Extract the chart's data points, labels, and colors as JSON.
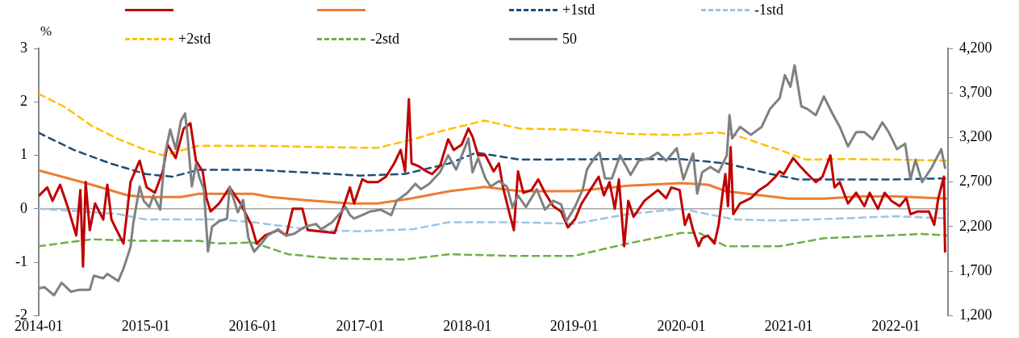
{
  "chart_data": {
    "type": "line",
    "ylabel": "%",
    "legend": "top",
    "grid": false,
    "marker": "none",
    "xlim": [
      "2014-01-01",
      "2022-06-28"
    ],
    "xticks": [
      "2014-01",
      "2015-01",
      "2016-01",
      "2017-01",
      "2018-01",
      "2019-01",
      "2020-01",
      "2021-01",
      "2022-01"
    ],
    "ylim": [
      -2,
      3
    ],
    "yticks": [
      -2,
      -1,
      0,
      1,
      2,
      3
    ],
    "y2lim": [
      1200,
      4200
    ],
    "y2ticks": [
      {
        "value": 1200,
        "label": "1,200"
      },
      {
        "value": 1700,
        "label": "1,700"
      },
      {
        "value": 2200,
        "label": "2,200"
      },
      {
        "value": 2700,
        "label": "2,700"
      },
      {
        "value": 3200,
        "label": "3,200"
      },
      {
        "value": 3700,
        "label": "3,700"
      },
      {
        "value": 4200,
        "label": "4,200"
      }
    ],
    "ref_lines": [
      {
        "axis": "y",
        "value": 0,
        "color": "#a6a6a6"
      }
    ],
    "series": [
      {
        "color": "#c00000",
        "line_style": "solid",
        "x": [
          "2014-01-03",
          "2014-01-30",
          "2014-02-17",
          "2014-03-15",
          "2014-04-12",
          "2014-05-09",
          "2014-05-23",
          "2014-06-01",
          "2014-06-10",
          "2014-06-24",
          "2014-07-12",
          "2014-08-09",
          "2014-08-23",
          "2014-09-06",
          "2014-10-03",
          "2014-10-17",
          "2014-11-10",
          "2014-12-11",
          "2015-01-04",
          "2015-02-01",
          "2015-02-28",
          "2015-03-16",
          "2015-04-13",
          "2015-05-10",
          "2015-06-02",
          "2015-06-21",
          "2015-07-14",
          "2015-07-27",
          "2015-08-10",
          "2015-09-08",
          "2015-10-14",
          "2015-11-20",
          "2015-12-27",
          "2016-01-14",
          "2016-02-11",
          "2016-03-27",
          "2016-04-24",
          "2016-05-16",
          "2016-06-18",
          "2016-07-06",
          "2016-10-06",
          "2016-11-12",
          "2016-11-27",
          "2016-12-11",
          "2017-01-08",
          "2017-01-26",
          "2017-03-02",
          "2017-03-30",
          "2017-04-27",
          "2017-05-19",
          "2017-06-03",
          "2017-06-16",
          "2017-06-25",
          "2017-07-18",
          "2017-08-15",
          "2017-09-03",
          "2017-09-30",
          "2017-10-28",
          "2017-11-16",
          "2017-12-13",
          "2018-01-05",
          "2018-01-19",
          "2018-02-07",
          "2018-03-04",
          "2018-04-01",
          "2018-04-19",
          "2018-05-03",
          "2018-05-21",
          "2018-06-09",
          "2018-06-23",
          "2018-07-11",
          "2018-08-08",
          "2018-08-31",
          "2018-09-23",
          "2018-10-21",
          "2018-11-17",
          "2018-12-10",
          "2019-01-03",
          "2019-01-26",
          "2019-02-18",
          "2019-03-25",
          "2019-04-12",
          "2019-05-01",
          "2019-05-19",
          "2019-06-02",
          "2019-06-20",
          "2019-07-04",
          "2019-07-22",
          "2019-08-28",
          "2019-10-13",
          "2019-11-10",
          "2019-11-28",
          "2019-12-26",
          "2020-01-13",
          "2020-01-27",
          "2020-02-10",
          "2020-02-29",
          "2020-03-12",
          "2020-03-31",
          "2020-04-23",
          "2020-05-07",
          "2020-05-21",
          "2020-05-30",
          "2020-06-08",
          "2020-06-17",
          "2020-06-26",
          "2020-07-19",
          "2020-08-25",
          "2020-09-22",
          "2020-10-20",
          "2020-11-17",
          "2020-12-01",
          "2020-12-15",
          "2021-01-16",
          "2021-02-08",
          "2021-03-06",
          "2021-04-03",
          "2021-04-26",
          "2021-05-23",
          "2021-06-06",
          "2021-06-24",
          "2021-07-22",
          "2021-08-19",
          "2021-09-16",
          "2021-10-04",
          "2021-11-01",
          "2021-11-24",
          "2021-12-17",
          "2022-01-14",
          "2022-02-06",
          "2022-02-20",
          "2022-03-17",
          "2022-04-24",
          "2022-05-12",
          "2022-05-26",
          "2022-06-14",
          "2022-06-18"
        ],
        "values": [
          0.25,
          0.4,
          0.15,
          0.45,
          0.0,
          -0.5,
          0.35,
          -1.08,
          0.5,
          -0.4,
          0.1,
          -0.2,
          0.45,
          -0.2,
          -0.5,
          -0.65,
          0.5,
          0.9,
          0.4,
          0.3,
          0.7,
          1.2,
          0.95,
          1.5,
          1.6,
          0.9,
          0.7,
          0.2,
          -0.05,
          0.1,
          0.4,
          0.1,
          -0.3,
          -0.65,
          -0.5,
          -0.4,
          -0.5,
          0.0,
          0.0,
          -0.4,
          -0.45,
          0.15,
          0.4,
          0.1,
          0.55,
          0.5,
          0.5,
          0.6,
          0.85,
          1.1,
          0.7,
          2.05,
          0.85,
          0.8,
          0.7,
          0.65,
          0.8,
          1.3,
          1.1,
          1.2,
          1.5,
          1.35,
          1.0,
          1.0,
          0.7,
          0.85,
          0.4,
          0.0,
          -0.4,
          0.7,
          0.3,
          0.35,
          0.55,
          0.3,
          0.05,
          -0.05,
          -0.35,
          -0.2,
          0.1,
          0.3,
          0.6,
          0.25,
          0.5,
          0.0,
          0.55,
          -0.7,
          0.15,
          -0.15,
          0.15,
          0.35,
          0.2,
          0.4,
          0.35,
          -0.3,
          -0.1,
          -0.4,
          -0.7,
          -0.55,
          -0.5,
          -0.65,
          -0.3,
          0.3,
          0.65,
          0.05,
          1.15,
          -0.1,
          0.1,
          0.2,
          0.35,
          0.45,
          0.6,
          0.7,
          0.65,
          0.95,
          0.8,
          0.65,
          0.5,
          0.6,
          1.0,
          0.4,
          0.5,
          0.1,
          0.3,
          0.05,
          0.3,
          0.0,
          0.3,
          0.15,
          0.05,
          0.2,
          -0.1,
          -0.05,
          -0.05,
          -0.3,
          0.2,
          0.6,
          -0.8
        ]
      },
      {
        "color": "#ed7d31",
        "line_style": "solid",
        "x": [
          "2014-01-01",
          "2014-07-01",
          "2014-11-01",
          "2015-01-01",
          "2015-05-01",
          "2015-07-01",
          "2016-01-01",
          "2016-03-01",
          "2016-07-01",
          "2016-12-01",
          "2017-03-01",
          "2017-07-01",
          "2017-11-01",
          "2018-03-01",
          "2018-07-01",
          "2019-01-01",
          "2019-07-01",
          "2020-01-01",
          "2020-04-01",
          "2020-06-01",
          "2020-10-01",
          "2021-01-01",
          "2021-05-01",
          "2021-09-01",
          "2022-01-01",
          "2022-06-28"
        ],
        "values": [
          0.72,
          0.45,
          0.25,
          0.22,
          0.22,
          0.28,
          0.28,
          0.22,
          0.16,
          0.1,
          0.1,
          0.2,
          0.33,
          0.41,
          0.33,
          0.33,
          0.43,
          0.48,
          0.45,
          0.33,
          0.25,
          0.19,
          0.19,
          0.23,
          0.23,
          0.19
        ]
      },
      {
        "name": "+1std",
        "color": "#1f4e79",
        "line_style": "dashed",
        "x": [
          "2014-01-01",
          "2014-05-01",
          "2014-09-01",
          "2015-01-01",
          "2015-04-01",
          "2015-07-01",
          "2016-01-01",
          "2016-07-01",
          "2017-01-01",
          "2017-06-01",
          "2017-11-01",
          "2018-02-01",
          "2018-07-01",
          "2019-07-01",
          "2020-01-01",
          "2020-06-01",
          "2020-11-01",
          "2021-02-01",
          "2021-09-01",
          "2022-01-01",
          "2022-06-28"
        ],
        "values": [
          1.42,
          1.1,
          0.85,
          0.65,
          0.6,
          0.73,
          0.73,
          0.68,
          0.62,
          0.65,
          0.85,
          1.05,
          0.92,
          0.93,
          0.93,
          0.85,
          0.65,
          0.55,
          0.55,
          0.55,
          0.57
        ]
      },
      {
        "name": "-1std",
        "color": "#9dc3e6",
        "line_style": "dashed",
        "x": [
          "2014-01-01",
          "2014-06-01",
          "2014-10-01",
          "2015-01-01",
          "2015-09-01",
          "2016-01-01",
          "2016-08-01",
          "2017-01-01",
          "2017-07-01",
          "2017-11-01",
          "2018-06-01",
          "2019-01-01",
          "2019-07-01",
          "2020-01-01",
          "2020-04-01",
          "2020-07-01",
          "2020-12-01",
          "2021-07-01",
          "2022-01-01",
          "2022-06-28"
        ],
        "values": [
          0.0,
          -0.05,
          -0.1,
          -0.2,
          -0.2,
          -0.25,
          -0.4,
          -0.42,
          -0.38,
          -0.25,
          -0.25,
          -0.28,
          -0.1,
          0.0,
          -0.1,
          -0.2,
          -0.22,
          -0.18,
          -0.14,
          -0.18
        ]
      },
      {
        "name": "+2std",
        "color": "#ffc000",
        "line_style": "dashed",
        "x": [
          "2014-01-01",
          "2014-04-01",
          "2014-07-01",
          "2014-10-01",
          "2015-01-01",
          "2015-03-01",
          "2015-07-01",
          "2016-01-01",
          "2016-10-01",
          "2017-03-01",
          "2017-07-01",
          "2017-10-01",
          "2018-03-01",
          "2018-07-01",
          "2019-01-01",
          "2019-07-01",
          "2020-01-01",
          "2020-05-01",
          "2020-07-01",
          "2020-12-01",
          "2021-03-01",
          "2021-07-01",
          "2022-01-01",
          "2022-06-28"
        ],
        "values": [
          2.15,
          1.9,
          1.55,
          1.3,
          1.1,
          1.0,
          1.18,
          1.18,
          1.15,
          1.14,
          1.3,
          1.45,
          1.65,
          1.5,
          1.48,
          1.4,
          1.38,
          1.43,
          1.38,
          1.1,
          0.92,
          0.93,
          0.92,
          0.9
        ]
      },
      {
        "name": "-2std",
        "color": "#70ad47",
        "line_style": "dashed",
        "x": [
          "2014-01-01",
          "2014-07-01",
          "2015-01-01",
          "2015-07-01",
          "2015-09-01",
          "2016-01-01",
          "2016-05-01",
          "2016-10-01",
          "2017-06-01",
          "2017-11-01",
          "2018-06-01",
          "2019-01-01",
          "2019-07-01",
          "2020-01-01",
          "2020-03-01",
          "2020-06-01",
          "2020-12-01",
          "2021-05-01",
          "2021-12-01",
          "2022-04-01",
          "2022-06-28"
        ],
        "values": [
          -0.7,
          -0.57,
          -0.6,
          -0.6,
          -0.65,
          -0.63,
          -0.85,
          -0.93,
          -0.95,
          -0.85,
          -0.88,
          -0.88,
          -0.65,
          -0.45,
          -0.45,
          -0.7,
          -0.7,
          -0.55,
          -0.5,
          -0.47,
          -0.5
        ]
      },
      {
        "name": "50",
        "color": "#808080",
        "line_style": "solid",
        "axis": "y2",
        "x": [
          "2014-01-03",
          "2014-01-21",
          "2014-02-22",
          "2014-03-20",
          "2014-04-21",
          "2014-05-18",
          "2014-06-24",
          "2014-07-08",
          "2014-08-09",
          "2014-08-23",
          "2014-09-15",
          "2014-09-29",
          "2014-10-17",
          "2014-11-10",
          "2014-11-19",
          "2014-12-11",
          "2014-12-25",
          "2015-01-13",
          "2015-01-27",
          "2015-02-19",
          "2015-03-07",
          "2015-03-25",
          "2015-04-13",
          "2015-05-01",
          "2015-05-15",
          "2015-05-24",
          "2015-06-07",
          "2015-06-21",
          "2015-07-04",
          "2015-07-18",
          "2015-08-01",
          "2015-08-15",
          "2015-09-08",
          "2015-10-05",
          "2015-10-14",
          "2015-11-11",
          "2015-11-29",
          "2015-12-17",
          "2016-01-05",
          "2016-01-28",
          "2016-02-20",
          "2016-03-27",
          "2016-04-24",
          "2016-05-21",
          "2016-06-27",
          "2016-08-03",
          "2016-08-21",
          "2016-09-27",
          "2016-11-12",
          "2016-11-27",
          "2016-12-11",
          "2017-01-08",
          "2017-02-04",
          "2017-03-11",
          "2017-04-17",
          "2017-05-05",
          "2017-06-11",
          "2017-07-08",
          "2017-07-27",
          "2017-08-24",
          "2017-09-30",
          "2017-10-28",
          "2017-11-24",
          "2017-12-22",
          "2018-01-05",
          "2018-01-19",
          "2018-02-07",
          "2018-03-04",
          "2018-03-22",
          "2018-04-19",
          "2018-05-16",
          "2018-06-04",
          "2018-06-23",
          "2018-07-20",
          "2018-08-26",
          "2018-09-23",
          "2018-10-21",
          "2018-11-17",
          "2018-12-05",
          "2019-01-03",
          "2019-01-30",
          "2019-02-13",
          "2019-03-10",
          "2019-03-28",
          "2019-04-16",
          "2019-05-09",
          "2019-06-06",
          "2019-07-12",
          "2019-08-09",
          "2019-09-15",
          "2019-10-13",
          "2019-11-10",
          "2019-12-16",
          "2020-01-08",
          "2020-01-20",
          "2020-02-10",
          "2020-02-24",
          "2020-03-12",
          "2020-04-09",
          "2020-05-07",
          "2020-06-04",
          "2020-06-13",
          "2020-06-22",
          "2020-07-19",
          "2020-08-25",
          "2020-10-01",
          "2020-10-29",
          "2020-12-01",
          "2020-12-19",
          "2021-01-07",
          "2021-01-21",
          "2021-02-13",
          "2021-03-06",
          "2021-04-03",
          "2021-05-01",
          "2021-05-28",
          "2021-06-24",
          "2021-07-22",
          "2021-08-19",
          "2021-09-16",
          "2021-10-14",
          "2021-11-16",
          "2021-12-08",
          "2022-01-05",
          "2022-02-02",
          "2022-02-20",
          "2022-03-09",
          "2022-04-01",
          "2022-05-03",
          "2022-06-05",
          "2022-06-18"
        ],
        "values": [
          1510,
          1520,
          1430,
          1570,
          1470,
          1490,
          1490,
          1650,
          1620,
          1670,
          1620,
          1590,
          1730,
          1970,
          2230,
          2650,
          2490,
          2420,
          2550,
          2390,
          3000,
          3290,
          3070,
          3390,
          3470,
          3190,
          2650,
          2900,
          2740,
          2620,
          1920,
          2200,
          2260,
          2290,
          2650,
          2360,
          2500,
          2070,
          1920,
          2000,
          2100,
          2170,
          2100,
          2120,
          2200,
          2230,
          2170,
          2250,
          2420,
          2330,
          2290,
          2330,
          2370,
          2390,
          2330,
          2490,
          2580,
          2680,
          2620,
          2680,
          2810,
          3000,
          2840,
          3070,
          3190,
          2810,
          2970,
          2740,
          2650,
          2710,
          2650,
          2420,
          2550,
          2420,
          2620,
          2390,
          2490,
          2450,
          2260,
          2420,
          2620,
          2840,
          2970,
          3030,
          2740,
          2740,
          3000,
          2780,
          2940,
          2970,
          3030,
          2940,
          3080,
          2730,
          2840,
          3020,
          2570,
          2810,
          2870,
          2810,
          3000,
          3450,
          3190,
          3320,
          3230,
          3320,
          3520,
          3640,
          3900,
          3770,
          4010,
          3550,
          3520,
          3450,
          3660,
          3480,
          3320,
          3100,
          3260,
          3260,
          3180,
          3370,
          3260,
          3070,
          3130,
          2730,
          2950,
          2700,
          2860,
          3070,
          2860
        ]
      }
    ]
  }
}
